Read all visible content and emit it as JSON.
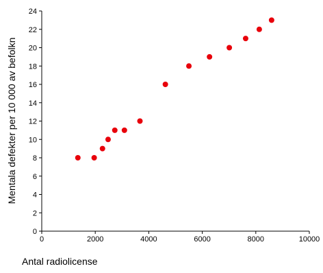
{
  "chart_data": {
    "type": "scatter",
    "title": "",
    "xlabel": "Antal radiolicense",
    "ylabel": "Mentala defekter per 10 000 av befolkn",
    "xlim": [
      0,
      10000
    ],
    "ylim": [
      0,
      24
    ],
    "x_ticks": [
      0,
      2000,
      4000,
      6000,
      8000,
      10000
    ],
    "y_ticks": [
      0,
      2,
      4,
      6,
      8,
      10,
      12,
      14,
      16,
      18,
      20,
      22,
      24
    ],
    "grid": false,
    "legend": "none",
    "marker_color": "#e8000b",
    "series": [
      {
        "points": [
          {
            "x": 1350,
            "y": 8
          },
          {
            "x": 1960,
            "y": 8
          },
          {
            "x": 2270,
            "y": 9
          },
          {
            "x": 2480,
            "y": 10
          },
          {
            "x": 2730,
            "y": 11
          },
          {
            "x": 3090,
            "y": 11
          },
          {
            "x": 3670,
            "y": 12
          },
          {
            "x": 4620,
            "y": 16
          },
          {
            "x": 5500,
            "y": 18
          },
          {
            "x": 6270,
            "y": 19
          },
          {
            "x": 7010,
            "y": 20
          },
          {
            "x": 7620,
            "y": 21
          },
          {
            "x": 8130,
            "y": 22
          },
          {
            "x": 8590,
            "y": 23
          }
        ]
      }
    ]
  }
}
